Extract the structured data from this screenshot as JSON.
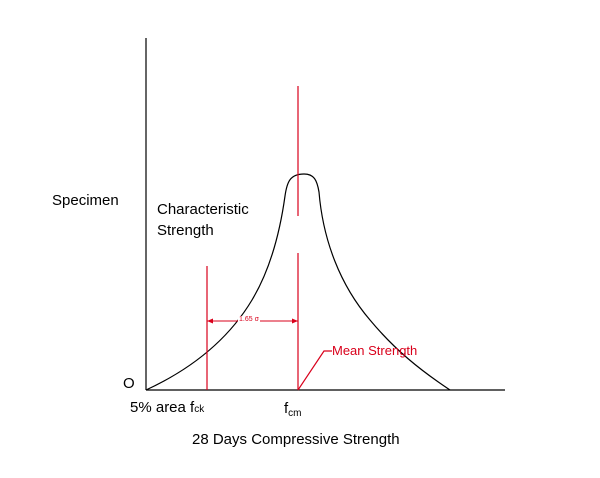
{
  "diagram": {
    "y_axis_label": "Specimen",
    "x_axis_label": "28 Days Compressive Strength",
    "origin_label": "O",
    "characteristic_label_line1": "Characteristic",
    "characteristic_label_line2": "Strength",
    "five_percent_label": "5% area f",
    "fck_subscript": "ck",
    "fcm_base": "f",
    "fcm_subscript": "cm",
    "sigma_label": "1.65 σ",
    "mean_label": "Mean Strength"
  },
  "colors": {
    "axis": "#000000",
    "curve": "#000000",
    "accent": "#d9001b"
  }
}
